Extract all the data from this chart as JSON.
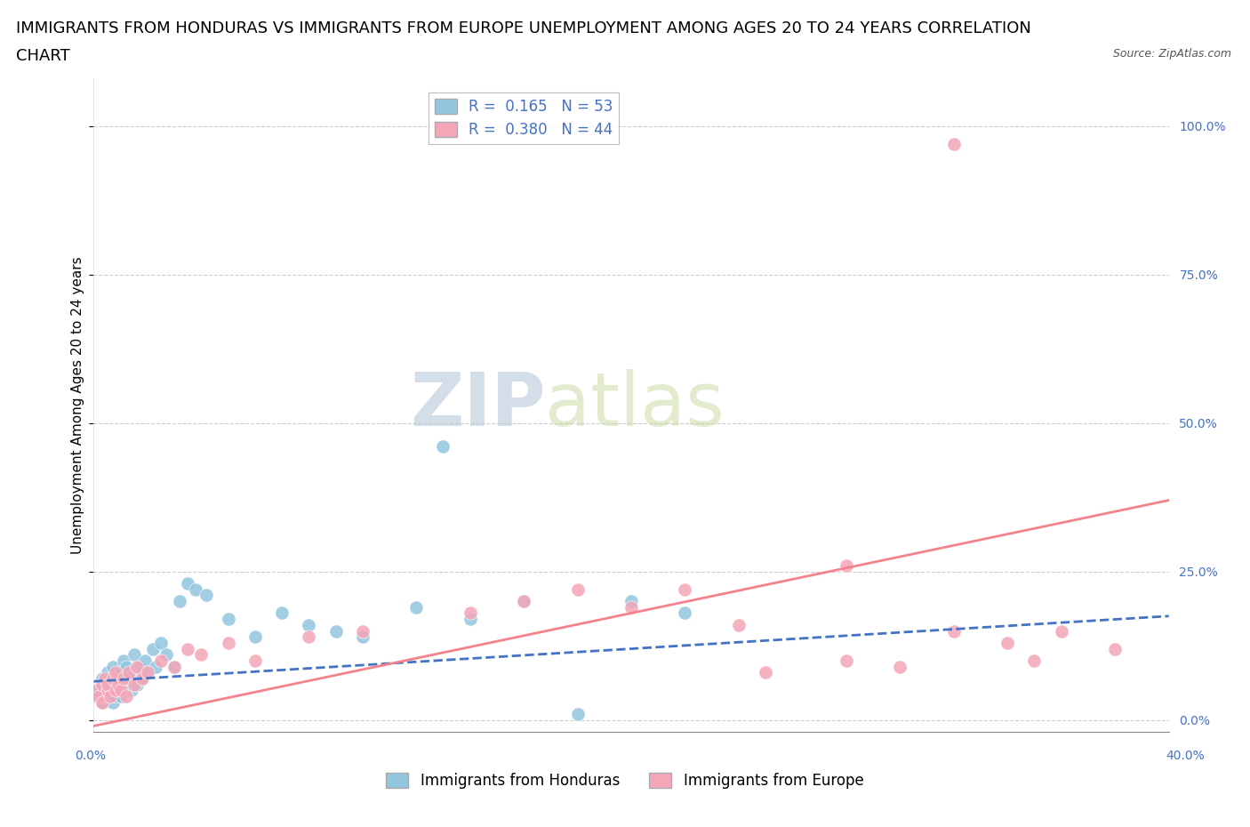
{
  "title_line1": "IMMIGRANTS FROM HONDURAS VS IMMIGRANTS FROM EUROPE UNEMPLOYMENT AMONG AGES 20 TO 24 YEARS CORRELATION",
  "title_line2": "CHART",
  "source": "Source: ZipAtlas.com",
  "ylabel": "Unemployment Among Ages 20 to 24 years",
  "ytick_vals": [
    0,
    0.25,
    0.5,
    0.75,
    1.0
  ],
  "ytick_labels": [
    "0.0%",
    "25.0%",
    "50.0%",
    "75.0%",
    "100.0%"
  ],
  "xlim": [
    0,
    0.4
  ],
  "ylim": [
    -0.02,
    1.08
  ],
  "watermark_zip": "ZIP",
  "watermark_atlas": "atlas",
  "legend_r1": "R =  0.165   N = 53",
  "legend_r2": "R =  0.380   N = 44",
  "color_blue": "#92c5de",
  "color_pink": "#f4a6b8",
  "trendline_blue_color": "#4472c4",
  "trendline_pink_color": "#f4828c",
  "legend_label1": "Immigrants from Honduras",
  "legend_label2": "Immigrants from Europe",
  "background_color": "#ffffff",
  "grid_color": "#c8c8c8",
  "title_fontsize": 13,
  "axis_label_fontsize": 11,
  "tick_fontsize": 10,
  "legend_fontsize": 12,
  "source_fontsize": 9,
  "right_tick_color": "#4472c4",
  "honduras_x": [
    0.001,
    0.002,
    0.003,
    0.003,
    0.004,
    0.004,
    0.005,
    0.005,
    0.005,
    0.006,
    0.006,
    0.007,
    0.007,
    0.008,
    0.008,
    0.009,
    0.009,
    0.01,
    0.01,
    0.011,
    0.012,
    0.012,
    0.013,
    0.014,
    0.015,
    0.015,
    0.016,
    0.017,
    0.018,
    0.019,
    0.02,
    0.022,
    0.023,
    0.025,
    0.027,
    0.03,
    0.032,
    0.035,
    0.038,
    0.042,
    0.05,
    0.06,
    0.07,
    0.08,
    0.09,
    0.1,
    0.12,
    0.14,
    0.16,
    0.18,
    0.13,
    0.2,
    0.22
  ],
  "honduras_y": [
    0.04,
    0.05,
    0.03,
    0.07,
    0.06,
    0.05,
    0.04,
    0.08,
    0.06,
    0.05,
    0.07,
    0.03,
    0.09,
    0.04,
    0.06,
    0.07,
    0.05,
    0.08,
    0.04,
    0.1,
    0.06,
    0.09,
    0.07,
    0.05,
    0.08,
    0.11,
    0.06,
    0.09,
    0.07,
    0.1,
    0.08,
    0.12,
    0.09,
    0.13,
    0.11,
    0.09,
    0.2,
    0.23,
    0.22,
    0.21,
    0.17,
    0.14,
    0.18,
    0.16,
    0.15,
    0.14,
    0.19,
    0.17,
    0.2,
    0.01,
    0.46,
    0.2,
    0.18
  ],
  "europe_x": [
    0.001,
    0.002,
    0.003,
    0.003,
    0.004,
    0.005,
    0.005,
    0.006,
    0.007,
    0.008,
    0.008,
    0.009,
    0.01,
    0.011,
    0.012,
    0.013,
    0.015,
    0.016,
    0.018,
    0.02,
    0.025,
    0.03,
    0.035,
    0.04,
    0.05,
    0.06,
    0.08,
    0.1,
    0.14,
    0.16,
    0.18,
    0.2,
    0.22,
    0.24,
    0.28,
    0.3,
    0.32,
    0.34,
    0.35,
    0.36,
    0.38,
    0.32,
    0.28,
    0.25
  ],
  "europe_y": [
    0.05,
    0.04,
    0.06,
    0.03,
    0.07,
    0.05,
    0.06,
    0.04,
    0.07,
    0.05,
    0.08,
    0.06,
    0.05,
    0.07,
    0.04,
    0.08,
    0.06,
    0.09,
    0.07,
    0.08,
    0.1,
    0.09,
    0.12,
    0.11,
    0.13,
    0.1,
    0.14,
    0.15,
    0.18,
    0.2,
    0.22,
    0.19,
    0.22,
    0.16,
    0.26,
    0.09,
    0.15,
    0.13,
    0.1,
    0.15,
    0.12,
    0.97,
    0.1,
    0.08
  ],
  "hon_trendline_x": [
    0.0,
    0.4
  ],
  "hon_trendline_y": [
    0.065,
    0.175
  ],
  "eur_trendline_x": [
    0.0,
    0.4
  ],
  "eur_trendline_y": [
    -0.01,
    0.37
  ]
}
